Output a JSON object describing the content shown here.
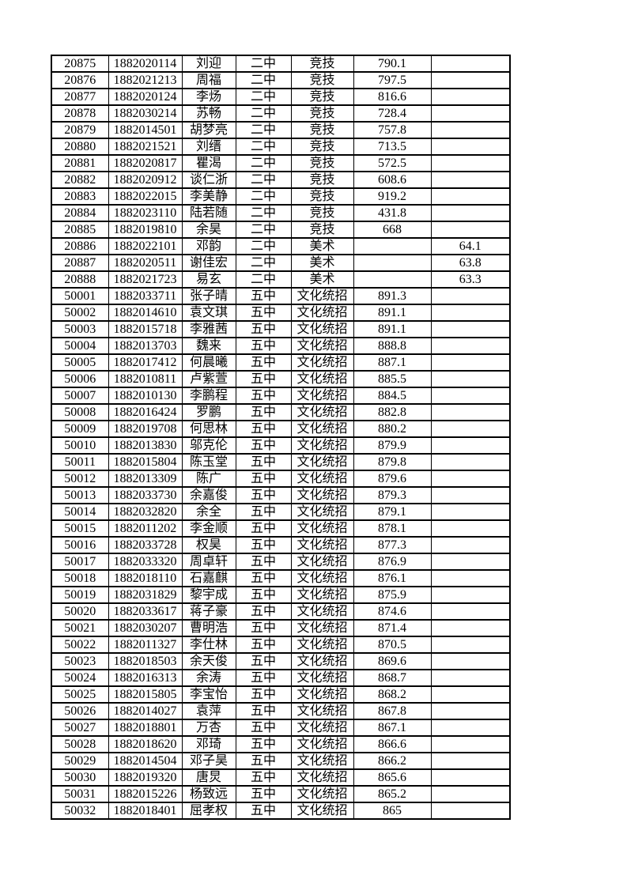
{
  "page": {
    "background_color": "#ffffff",
    "text_color": "#000000",
    "table_border_color": "#000000"
  },
  "table": {
    "rows": [
      [
        "20875",
        "1882020114",
        "刘迎",
        "二中",
        "竞技",
        "790.1",
        ""
      ],
      [
        "20876",
        "1882021213",
        "周福",
        "二中",
        "竞技",
        "797.5",
        ""
      ],
      [
        "20877",
        "1882020124",
        "李炀",
        "二中",
        "竞技",
        "816.6",
        ""
      ],
      [
        "20878",
        "1882030214",
        "苏畅",
        "二中",
        "竞技",
        "728.4",
        ""
      ],
      [
        "20879",
        "1882014501",
        "胡梦亮",
        "二中",
        "竞技",
        "757.8",
        ""
      ],
      [
        "20880",
        "1882021521",
        "刘缙",
        "二中",
        "竞技",
        "713.5",
        ""
      ],
      [
        "20881",
        "1882020817",
        "瞿渴",
        "二中",
        "竞技",
        "572.5",
        ""
      ],
      [
        "20882",
        "1882020912",
        "谈仁浙",
        "二中",
        "竞技",
        "608.6",
        ""
      ],
      [
        "20883",
        "1882022015",
        "李美静",
        "二中",
        "竞技",
        "919.2",
        ""
      ],
      [
        "20884",
        "1882023110",
        "陆若随",
        "二中",
        "竞技",
        "431.8",
        ""
      ],
      [
        "20885",
        "1882019810",
        "余昊",
        "二中",
        "竞技",
        "668",
        ""
      ],
      [
        "20886",
        "1882022101",
        "邓韵",
        "二中",
        "美术",
        "",
        "64.1"
      ],
      [
        "20887",
        "1882020511",
        "谢佳宏",
        "二中",
        "美术",
        "",
        "63.8"
      ],
      [
        "20888",
        "1882021723",
        "易玄",
        "二中",
        "美术",
        "",
        "63.3"
      ],
      [
        "50001",
        "1882033711",
        "张子晴",
        "五中",
        "文化统招",
        "891.3",
        ""
      ],
      [
        "50002",
        "1882014610",
        "袁文琪",
        "五中",
        "文化统招",
        "891.1",
        ""
      ],
      [
        "50003",
        "1882015718",
        "李雅茜",
        "五中",
        "文化统招",
        "891.1",
        ""
      ],
      [
        "50004",
        "1882013703",
        "魏来",
        "五中",
        "文化统招",
        "888.8",
        ""
      ],
      [
        "50005",
        "1882017412",
        "何晨曦",
        "五中",
        "文化统招",
        "887.1",
        ""
      ],
      [
        "50006",
        "1882010811",
        "卢紫萱",
        "五中",
        "文化统招",
        "885.5",
        ""
      ],
      [
        "50007",
        "1882010130",
        "李鹏程",
        "五中",
        "文化统招",
        "884.5",
        ""
      ],
      [
        "50008",
        "1882016424",
        "罗鹏",
        "五中",
        "文化统招",
        "882.8",
        ""
      ],
      [
        "50009",
        "1882019708",
        "何思林",
        "五中",
        "文化统招",
        "880.2",
        ""
      ],
      [
        "50010",
        "1882013830",
        "邬克伦",
        "五中",
        "文化统招",
        "879.9",
        ""
      ],
      [
        "50011",
        "1882015804",
        "陈玉堂",
        "五中",
        "文化统招",
        "879.8",
        ""
      ],
      [
        "50012",
        "1882013309",
        "陈广",
        "五中",
        "文化统招",
        "879.6",
        ""
      ],
      [
        "50013",
        "1882033730",
        "余嘉俊",
        "五中",
        "文化统招",
        "879.3",
        ""
      ],
      [
        "50014",
        "1882032820",
        "余全",
        "五中",
        "文化统招",
        "879.1",
        ""
      ],
      [
        "50015",
        "1882011202",
        "李金顺",
        "五中",
        "文化统招",
        "878.1",
        ""
      ],
      [
        "50016",
        "1882033728",
        "权昊",
        "五中",
        "文化统招",
        "877.3",
        ""
      ],
      [
        "50017",
        "1882033320",
        "周卓轩",
        "五中",
        "文化统招",
        "876.9",
        ""
      ],
      [
        "50018",
        "1882018110",
        "石嘉麒",
        "五中",
        "文化统招",
        "876.1",
        ""
      ],
      [
        "50019",
        "1882031829",
        "黎宇成",
        "五中",
        "文化统招",
        "875.9",
        ""
      ],
      [
        "50020",
        "1882033617",
        "蒋子豪",
        "五中",
        "文化统招",
        "874.6",
        ""
      ],
      [
        "50021",
        "1882030207",
        "曹明浩",
        "五中",
        "文化统招",
        "871.4",
        ""
      ],
      [
        "50022",
        "1882011327",
        "李仕林",
        "五中",
        "文化统招",
        "870.5",
        ""
      ],
      [
        "50023",
        "1882018503",
        "余天俊",
        "五中",
        "文化统招",
        "869.6",
        ""
      ],
      [
        "50024",
        "1882016313",
        "余涛",
        "五中",
        "文化统招",
        "868.7",
        ""
      ],
      [
        "50025",
        "1882015805",
        "李宝怡",
        "五中",
        "文化统招",
        "868.2",
        ""
      ],
      [
        "50026",
        "1882014027",
        "袁萍",
        "五中",
        "文化统招",
        "867.8",
        ""
      ],
      [
        "50027",
        "1882018801",
        "万杏",
        "五中",
        "文化统招",
        "867.1",
        ""
      ],
      [
        "50028",
        "1882018620",
        "邓琦",
        "五中",
        "文化统招",
        "866.6",
        ""
      ],
      [
        "50029",
        "1882014504",
        "邓子昊",
        "五中",
        "文化统招",
        "866.2",
        ""
      ],
      [
        "50030",
        "1882019320",
        "唐炅",
        "五中",
        "文化统招",
        "865.6",
        ""
      ],
      [
        "50031",
        "1882015226",
        "杨致远",
        "五中",
        "文化统招",
        "865.2",
        ""
      ],
      [
        "50032",
        "1882018401",
        "屈孝权",
        "五中",
        "文化统招",
        "865",
        ""
      ]
    ]
  }
}
